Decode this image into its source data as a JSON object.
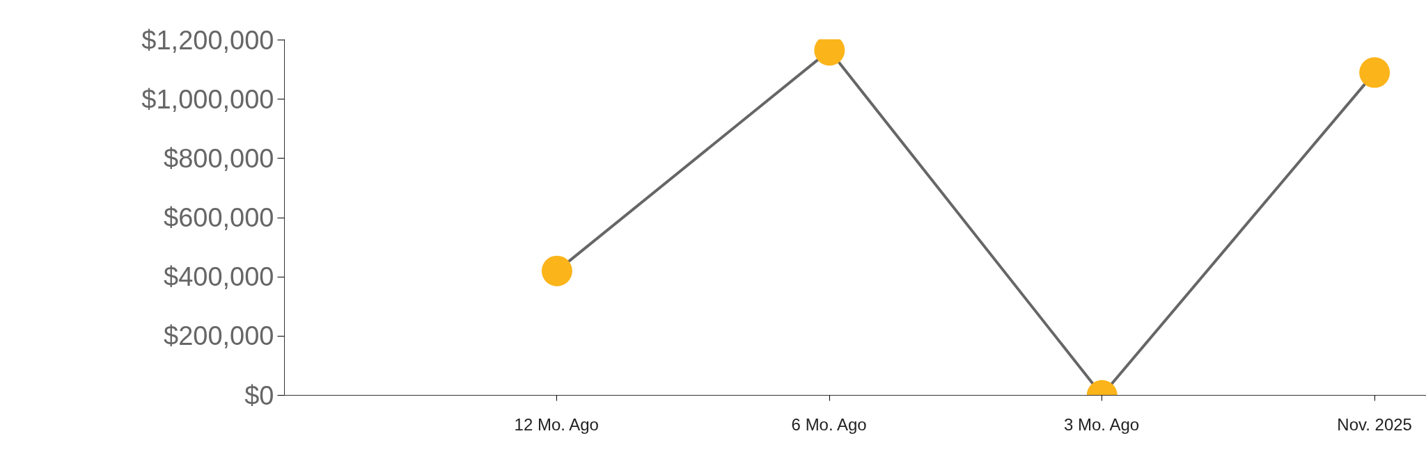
{
  "chart_data": {
    "type": "line",
    "categories": [
      null,
      "12 Mo. Ago",
      "6 Mo. Ago",
      "3 Mo. Ago",
      "Nov. 2025"
    ],
    "series": [
      {
        "color": "#666666",
        "colors": [
          null,
          "#fbb419",
          "#fbb419",
          "#fbb419",
          "#fbb419"
        ],
        "values": [
          null,
          420000,
          1165000,
          0,
          1090000
        ]
      }
    ],
    "ylim": [
      0,
      1200000
    ],
    "yticks": [
      {
        "value": 0,
        "label": "$0"
      },
      {
        "value": 200000,
        "label": "$200,000"
      },
      {
        "value": 400000,
        "label": "$400,000"
      },
      {
        "value": 600000,
        "label": "$600,000"
      },
      {
        "value": 800000,
        "label": "$800,000"
      },
      {
        "value": 1000000,
        "label": "$1,000,000"
      },
      {
        "value": 1200000,
        "label": "$1,200,000"
      }
    ],
    "marker": "circle",
    "grid": false
  }
}
